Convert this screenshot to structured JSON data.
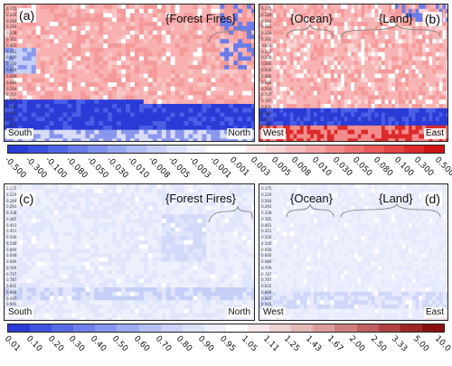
{
  "chart_data": [
    {
      "type": "heatmap",
      "panel_label": "(a)",
      "annotations": [
        "{Forest Fires}"
      ],
      "left_label": "South",
      "right_label": "North",
      "yticks": [
        "0.175",
        "0.229",
        "0.264",
        "0.293",
        "0.328",
        "0.365",
        "0.401",
        "0.451",
        "0.500",
        "0.540",
        "0.600",
        "0.640",
        "0.680",
        "0.709",
        "0.747",
        "0.787",
        "0.835",
        "0.869",
        "0.907",
        "0.945",
        "0.978",
        "0.997"
      ],
      "colorbar": "diverging"
    },
    {
      "type": "heatmap",
      "panel_label": "(b)",
      "annotations": [
        "{Ocean}",
        "{Land}"
      ],
      "left_label": "West",
      "right_label": "East",
      "yticks": [
        "0.175",
        "0.229",
        "0.264",
        "0.293",
        "0.328",
        "0.365",
        "0.401",
        "0.451",
        "0.500",
        "0.540",
        "0.600",
        "0.640",
        "0.680",
        "0.709",
        "0.747",
        "0.787",
        "0.835",
        "0.869",
        "0.907",
        "0.945",
        "0.978",
        "0.997"
      ],
      "colorbar": "diverging"
    },
    {
      "type": "heatmap",
      "panel_label": "(c)",
      "annotations": [
        "{Forest Fires}"
      ],
      "left_label": "South",
      "right_label": "North",
      "yticks": [
        "0.175",
        "0.229",
        "0.264",
        "0.293",
        "0.328",
        "0.365",
        "0.401",
        "0.451",
        "0.500",
        "0.540",
        "0.600",
        "0.640",
        "0.680",
        "0.709",
        "0.747",
        "0.787",
        "0.835",
        "0.869",
        "0.907",
        "0.945",
        "0.978",
        "0.997"
      ],
      "colorbar": "ratio"
    },
    {
      "type": "heatmap",
      "panel_label": "(d)",
      "annotations": [
        "{Ocean}",
        "{Land}"
      ],
      "left_label": "West",
      "right_label": "East",
      "yticks": [
        "0.175",
        "0.229",
        "0.264",
        "0.293",
        "0.328",
        "0.365",
        "0.401",
        "0.451",
        "0.500",
        "0.540",
        "0.600",
        "0.640",
        "0.680",
        "0.709",
        "0.747",
        "0.787",
        "0.835",
        "0.869",
        "0.907",
        "0.945",
        "0.978",
        "0.997"
      ],
      "colorbar": "ratio"
    }
  ],
  "colorbars": {
    "diverging": {
      "ticks": [
        "-0.500",
        "-0.300",
        "-0.100",
        "-0.080",
        "-0.050",
        "-0.030",
        "-0.010",
        "-0.008",
        "-0.005",
        "-0.003",
        "-0.001",
        "0.001",
        "0.003",
        "0.005",
        "0.008",
        "0.010",
        "0.030",
        "0.050",
        "0.080",
        "0.100",
        "0.300",
        "0.500"
      ],
      "colors": [
        "#2a3bd6",
        "#3a4fe0",
        "#5065e6",
        "#6a7cea",
        "#8090ee",
        "#98a6f2",
        "#b0bcf6",
        "#c6cff8",
        "#dbe1fa",
        "#eceffc",
        "#ffffff",
        "#ffffff",
        "#fce8e8",
        "#fad4d4",
        "#f8bcbc",
        "#f5a5a5",
        "#f28c8c",
        "#ee7272",
        "#ea5a5a",
        "#e44444",
        "#dd2a2a",
        "#d11313"
      ]
    },
    "ratio": {
      "ticks": [
        "0.01",
        "0.10",
        "0.20",
        "0.30",
        "0.40",
        "0.50",
        "0.60",
        "0.70",
        "0.80",
        "0.90",
        "0.95",
        "1.05",
        "1.11",
        "1.25",
        "1.43",
        "1.67",
        "2.00",
        "2.50",
        "3.33",
        "5.00",
        "10.0"
      ],
      "colors": [
        "#2a3bd6",
        "#3f52e0",
        "#566ae6",
        "#6e80ea",
        "#8696ee",
        "#9eacf2",
        "#b6c0f6",
        "#cbd3f8",
        "#dde2fa",
        "#edf0fd",
        "#ffffff",
        "#f7e8e8",
        "#efd2d2",
        "#e6b8b8",
        "#db9c9c",
        "#cf7e7e",
        "#c06060",
        "#b04242",
        "#9e2626",
        "#8a1010"
      ]
    }
  },
  "colors": {
    "blue_deep": "#2a3bd6",
    "red_light": "#f8a8a8",
    "red_deep": "#d11313"
  }
}
